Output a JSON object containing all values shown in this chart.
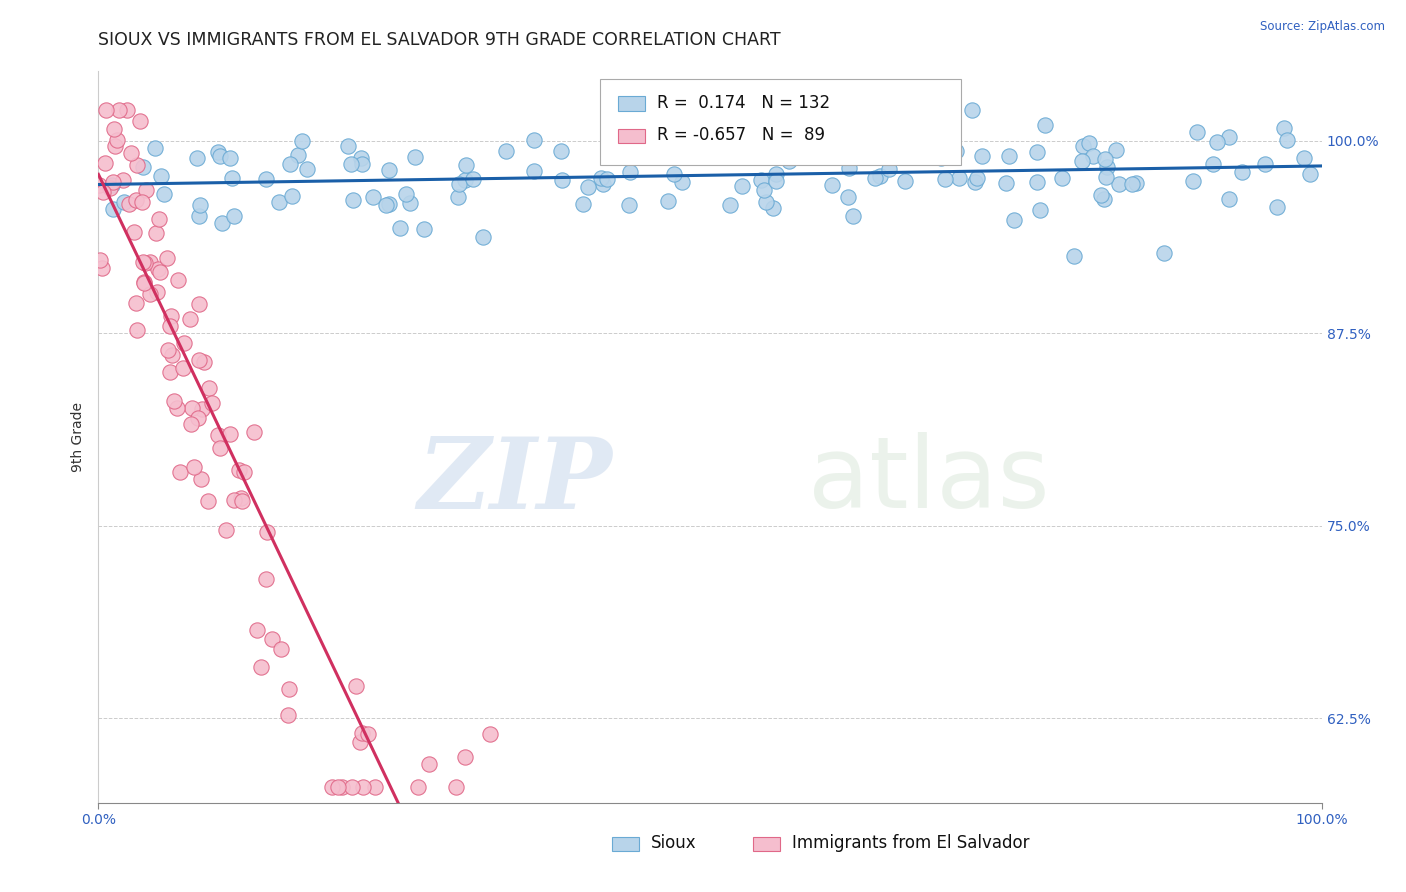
{
  "title": "SIOUX VS IMMIGRANTS FROM EL SALVADOR 9TH GRADE CORRELATION CHART",
  "source_text": "Source: ZipAtlas.com",
  "ylabel": "9th Grade",
  "xlim": [
    0.0,
    1.0
  ],
  "ylim": [
    0.57,
    1.045
  ],
  "yticks": [
    0.625,
    0.75,
    0.875,
    1.0
  ],
  "ytick_labels": [
    "62.5%",
    "75.0%",
    "87.5%",
    "100.0%"
  ],
  "xticks": [
    0.0,
    1.0
  ],
  "xtick_labels": [
    "0.0%",
    "100.0%"
  ],
  "blue_color": "#b8d4ea",
  "blue_edge_color": "#6aaad4",
  "pink_color": "#f5bece",
  "pink_edge_color": "#e06888",
  "blue_line_color": "#1a5fa8",
  "pink_line_color": "#d03060",
  "legend_blue_label": "Sioux",
  "legend_pink_label": "Immigrants from El Salvador",
  "R_blue": 0.174,
  "N_blue": 132,
  "R_pink": -0.657,
  "N_pink": 89,
  "watermark_zip": "ZIP",
  "watermark_atlas": "atlas",
  "background_color": "#ffffff",
  "grid_color": "#cccccc",
  "title_fontsize": 12.5,
  "axis_label_fontsize": 10,
  "tick_fontsize": 10,
  "legend_fontsize": 12,
  "marker_size": 11,
  "blue_seed": 99,
  "pink_seed": 77
}
